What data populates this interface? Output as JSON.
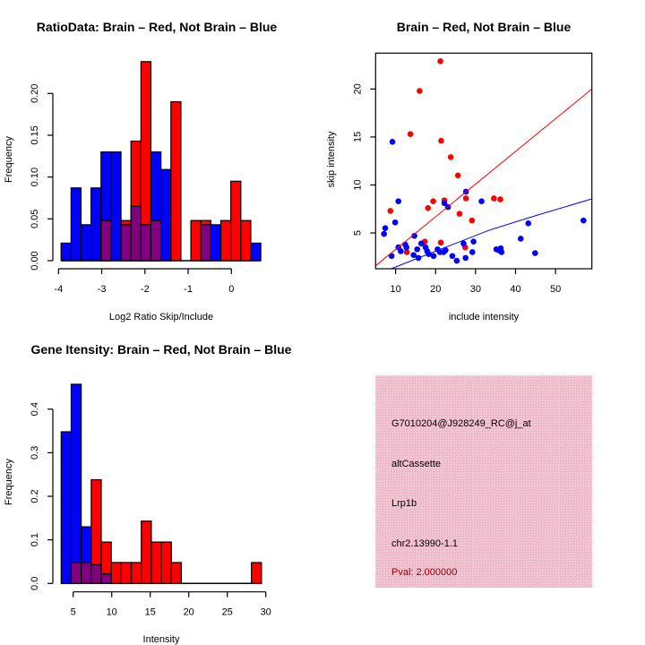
{
  "colors": {
    "red": "#ff0000",
    "blue": "#0000ff",
    "overlap": "#800080",
    "panel": "#f5c3cf",
    "pval": "#8b0000"
  },
  "chart_data": [
    {
      "type": "bar",
      "subtype": "overlaid-histogram",
      "title": "RatioData: Brain – Red, Not Brain – Blue",
      "xlabel": "Log2 Ratio Skip/Include",
      "ylabel": "Frequency",
      "bin_start": -3.94,
      "bin_width": 0.231,
      "xticks": [
        "-4",
        "-3",
        "-2",
        "-1",
        "0"
      ],
      "xtick_values": [
        -4,
        -3,
        -2,
        -1,
        0
      ],
      "yticks": [
        "0.00",
        "0.05",
        "0.10",
        "0.15",
        "0.20"
      ],
      "ytick_values": [
        0,
        0.05,
        0.1,
        0.15,
        0.2
      ],
      "series": [
        {
          "name": "Not Brain",
          "color": "blue",
          "values": [
            0.021,
            0.087,
            0.043,
            0.087,
            0.13,
            0.13,
            0.043,
            0.065,
            0.043,
            0.13,
            0.109,
            0,
            0,
            0,
            0.043,
            0.043,
            0,
            0,
            0,
            0.021
          ]
        },
        {
          "name": "Brain",
          "color": "red",
          "values": [
            0,
            0,
            0,
            0,
            0.048,
            0,
            0.048,
            0.143,
            0.238,
            0.048,
            0,
            0.19,
            0,
            0.048,
            0.048,
            0,
            0.048,
            0.095,
            0.048,
            0
          ]
        }
      ]
    },
    {
      "type": "scatter",
      "title": "Brain – Red, Not Brain – Blue",
      "xlabel": "include intensity",
      "ylabel": "skip intensity",
      "xlim": [
        5,
        59.1
      ],
      "ylim": [
        1.27,
        23.74
      ],
      "xticks": [
        "10",
        "20",
        "30",
        "40",
        "50"
      ],
      "xtick_values": [
        10,
        20,
        30,
        40,
        50
      ],
      "yticks": [
        "5",
        "10",
        "15",
        "20"
      ],
      "ytick_values": [
        5,
        10,
        15,
        20
      ],
      "series": [
        {
          "name": "Brain",
          "color": "red",
          "points": [
            [
              21.2,
              22.9
            ],
            [
              16.0,
              19.8
            ],
            [
              13.7,
              15.3
            ],
            [
              21.4,
              14.6
            ],
            [
              23.8,
              12.9
            ],
            [
              25.6,
              11.0
            ],
            [
              8.7,
              7.3
            ],
            [
              18.1,
              7.6
            ],
            [
              19.4,
              8.3
            ],
            [
              22.2,
              8.4
            ],
            [
              27.6,
              8.6
            ],
            [
              26.0,
              7.0
            ],
            [
              29.1,
              6.3
            ],
            [
              34.6,
              8.6
            ],
            [
              36.2,
              8.5
            ],
            [
              17.3,
              4.1
            ],
            [
              21.3,
              4.0
            ],
            [
              27.4,
              3.5
            ],
            [
              12.8,
              3.0
            ]
          ],
          "fit": [
            [
              5,
              1.58
            ],
            [
              59.1,
              20.0
            ]
          ]
        },
        {
          "name": "Not Brain",
          "color": "blue",
          "points": [
            [
              9.2,
              14.5
            ],
            [
              27.6,
              9.3
            ],
            [
              10.7,
              8.3
            ],
            [
              22.2,
              8.1
            ],
            [
              23.1,
              7.7
            ],
            [
              31.5,
              8.3
            ],
            [
              9.9,
              6.1
            ],
            [
              7.4,
              5.5
            ],
            [
              7.1,
              4.9
            ],
            [
              14.7,
              4.7
            ],
            [
              57.0,
              6.3
            ],
            [
              43.2,
              6.0
            ],
            [
              41.3,
              4.4
            ],
            [
              44.9,
              2.9
            ],
            [
              9.0,
              2.6
            ],
            [
              10.7,
              3.5
            ],
            [
              11.3,
              3.1
            ],
            [
              12.4,
              3.8
            ],
            [
              12.7,
              3.5
            ],
            [
              14.5,
              2.7
            ],
            [
              15.4,
              3.3
            ],
            [
              15.7,
              2.4
            ],
            [
              16.4,
              3.9
            ],
            [
              17.5,
              3.5
            ],
            [
              17.9,
              3.1
            ],
            [
              18.3,
              2.8
            ],
            [
              19.5,
              2.6
            ],
            [
              20.5,
              3.3
            ],
            [
              21.1,
              3.0
            ],
            [
              22.0,
              3.0
            ],
            [
              22.5,
              3.2
            ],
            [
              24.2,
              2.6
            ],
            [
              25.3,
              2.1
            ],
            [
              27.0,
              3.9
            ],
            [
              27.5,
              2.4
            ],
            [
              29.2,
              3.0
            ],
            [
              29.5,
              4.1
            ],
            [
              35.2,
              3.3
            ],
            [
              35.8,
              3.2
            ],
            [
              36.3,
              3.4
            ],
            [
              36.5,
              3.0
            ]
          ],
          "fit": [
            [
              8.9,
              1.27
            ],
            [
              20,
              3.1
            ],
            [
              33.5,
              5.3
            ],
            [
              45,
              6.8
            ],
            [
              59.1,
              8.55
            ]
          ]
        }
      ]
    },
    {
      "type": "bar",
      "subtype": "overlaid-histogram",
      "title": "Gene Itensity: Brain – Red, Not Brain – Blue",
      "xlabel": "Intensity",
      "ylabel": "Frequency",
      "bin_start": 3.44,
      "bin_width": 1.3,
      "xticks": [
        "5",
        "10",
        "15",
        "20",
        "25",
        "30"
      ],
      "xtick_values": [
        5,
        10,
        15,
        20,
        25,
        30
      ],
      "yticks": [
        "0.0",
        "0.1",
        "0.2",
        "0.3",
        "0.4"
      ],
      "ytick_values": [
        0,
        0.1,
        0.2,
        0.3,
        0.4
      ],
      "series": [
        {
          "name": "Not Brain",
          "color": "blue",
          "values": [
            0.348,
            0.457,
            0.13,
            0.043,
            0.022,
            0,
            0,
            0,
            0,
            0,
            0,
            0,
            0,
            0,
            0,
            0,
            0,
            0,
            0,
            0
          ]
        },
        {
          "name": "Brain",
          "color": "red",
          "values": [
            0,
            0.048,
            0.048,
            0.238,
            0.095,
            0.048,
            0.048,
            0.048,
            0.143,
            0.095,
            0.095,
            0.048,
            0,
            0,
            0,
            0,
            0,
            0,
            0,
            0.048
          ]
        }
      ]
    }
  ],
  "info_panel": {
    "probe_id": "G7010204@J928249_RC@j_at",
    "event_type": "altCassette",
    "gene": "Lrp1b",
    "location": "chr2.13990-1.1",
    "pval": "Pval: 2.000000"
  }
}
